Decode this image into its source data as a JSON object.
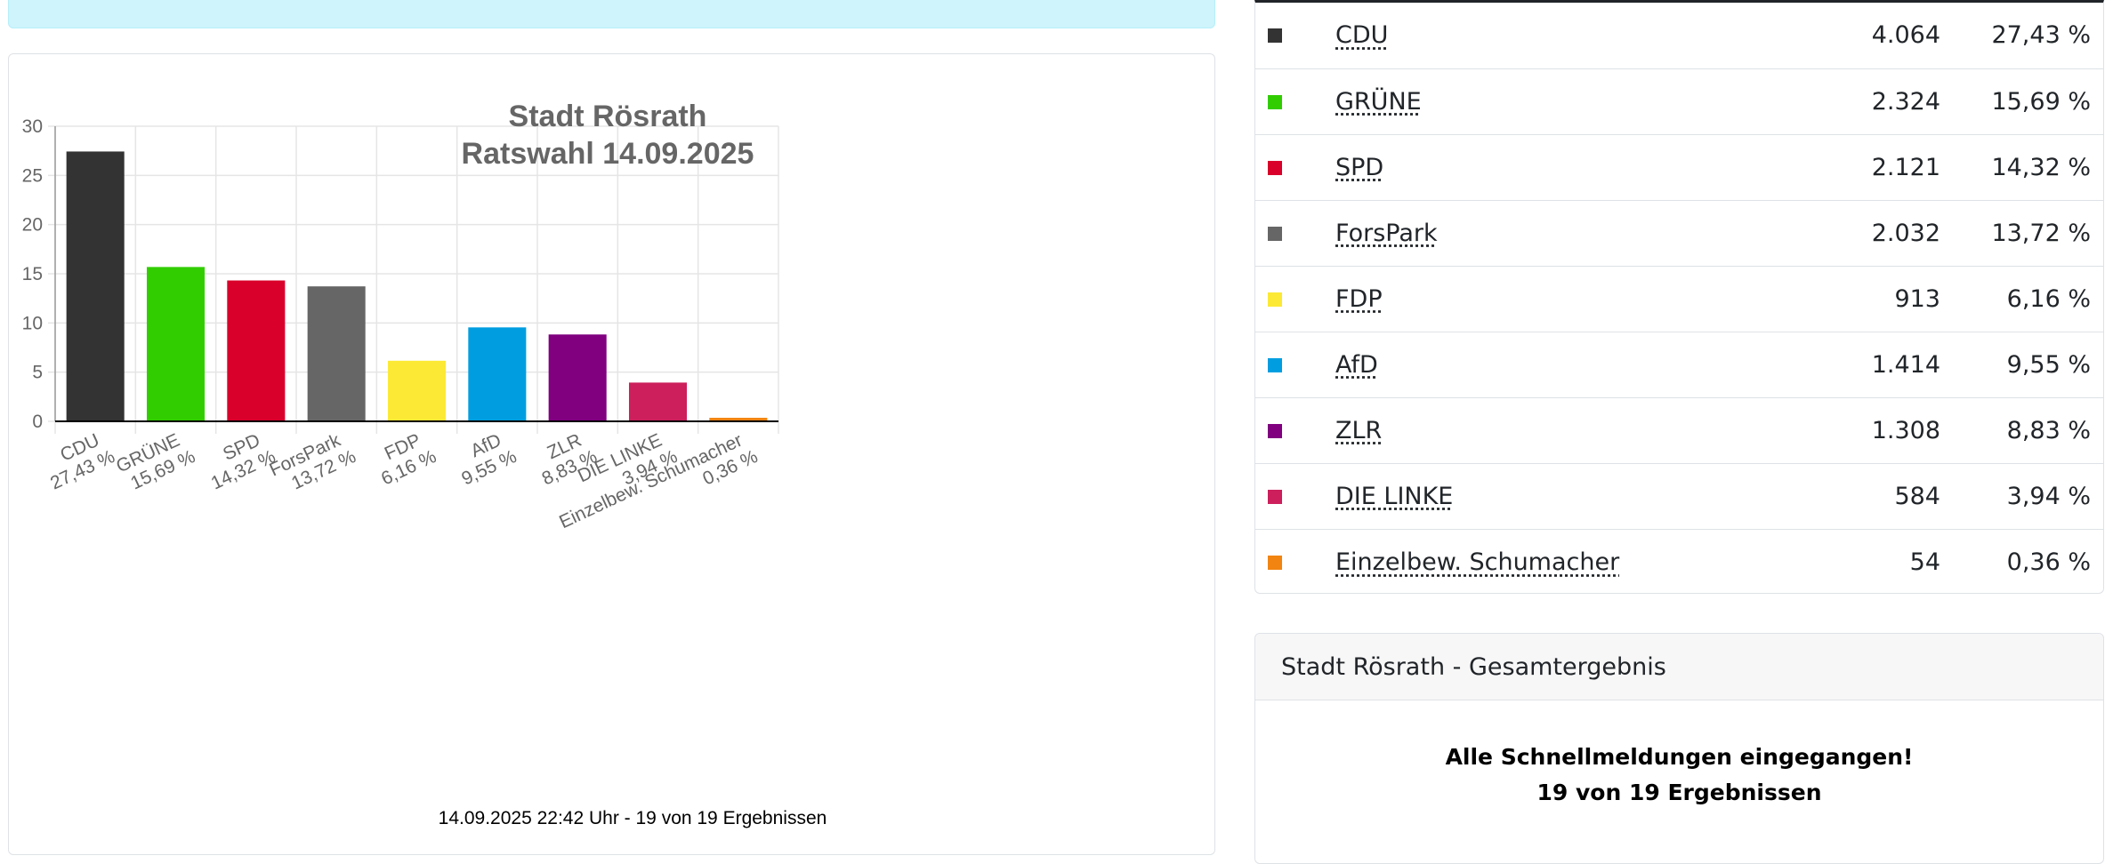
{
  "chart_data": {
    "type": "bar",
    "title": [
      "Stadt Rösrath",
      "Ratswahl 14.09.2025"
    ],
    "categories": [
      "CDU",
      "GRÜNE",
      "SPD",
      "ForsPark",
      "FDP",
      "AfD",
      "ZLR",
      "DIE LINKE",
      "Einzelbew. Schumacher"
    ],
    "category_labels": [
      [
        "CDU",
        "27,43 %"
      ],
      [
        "GRÜNE",
        "15,69 %"
      ],
      [
        "SPD",
        "14,32 %"
      ],
      [
        "ForsPark",
        "13,72 %"
      ],
      [
        "FDP",
        "6,16 %"
      ],
      [
        "AfD",
        "9,55 %"
      ],
      [
        "ZLR",
        "8,83 %"
      ],
      [
        "DIE LINKE",
        "3,94 %"
      ],
      [
        "Einzelbew. Schumacher",
        "0,36 %"
      ]
    ],
    "values": [
      27.43,
      15.69,
      14.32,
      13.72,
      6.16,
      9.55,
      8.83,
      3.94,
      0.36
    ],
    "colors": [
      "#333333",
      "#32cd00",
      "#d9002b",
      "#666666",
      "#fce935",
      "#009ee0",
      "#800080",
      "#cc1f5c",
      "#f28411"
    ],
    "ylim": [
      0,
      30
    ],
    "yticks": [
      0,
      5,
      10,
      15,
      20,
      25,
      30
    ],
    "grid": true,
    "xlabel": "",
    "ylabel": "",
    "footer": "14.09.2025 22:42 Uhr - 19 von 19 Ergebnissen"
  },
  "results_table": [
    {
      "party": "CDU",
      "votes": "4.064",
      "percent": "27,43 %",
      "color": "#333333"
    },
    {
      "party": "GRÜNE",
      "votes": "2.324",
      "percent": "15,69 %",
      "color": "#32cd00"
    },
    {
      "party": "SPD",
      "votes": "2.121",
      "percent": "14,32 %",
      "color": "#d9002b"
    },
    {
      "party": "ForsPark",
      "votes": "2.032",
      "percent": "13,72 %",
      "color": "#666666"
    },
    {
      "party": "FDP",
      "votes": "913",
      "percent": "6,16 %",
      "color": "#fce935"
    },
    {
      "party": "AfD",
      "votes": "1.414",
      "percent": "9,55 %",
      "color": "#009ee0"
    },
    {
      "party": "ZLR",
      "votes": "1.308",
      "percent": "8,83 %",
      "color": "#800080"
    },
    {
      "party": "DIE LINKE",
      "votes": "584",
      "percent": "3,94 %",
      "color": "#cc1f5c"
    },
    {
      "party": "Einzelbew. Schumacher",
      "votes": "54",
      "percent": "0,36 %",
      "color": "#f28411"
    }
  ],
  "summary": {
    "header": "Stadt Rösrath - Gesamtergebnis",
    "line1": "Alle Schnellmeldungen eingegangen!",
    "line2": "19 von 19 Ergebnissen"
  }
}
